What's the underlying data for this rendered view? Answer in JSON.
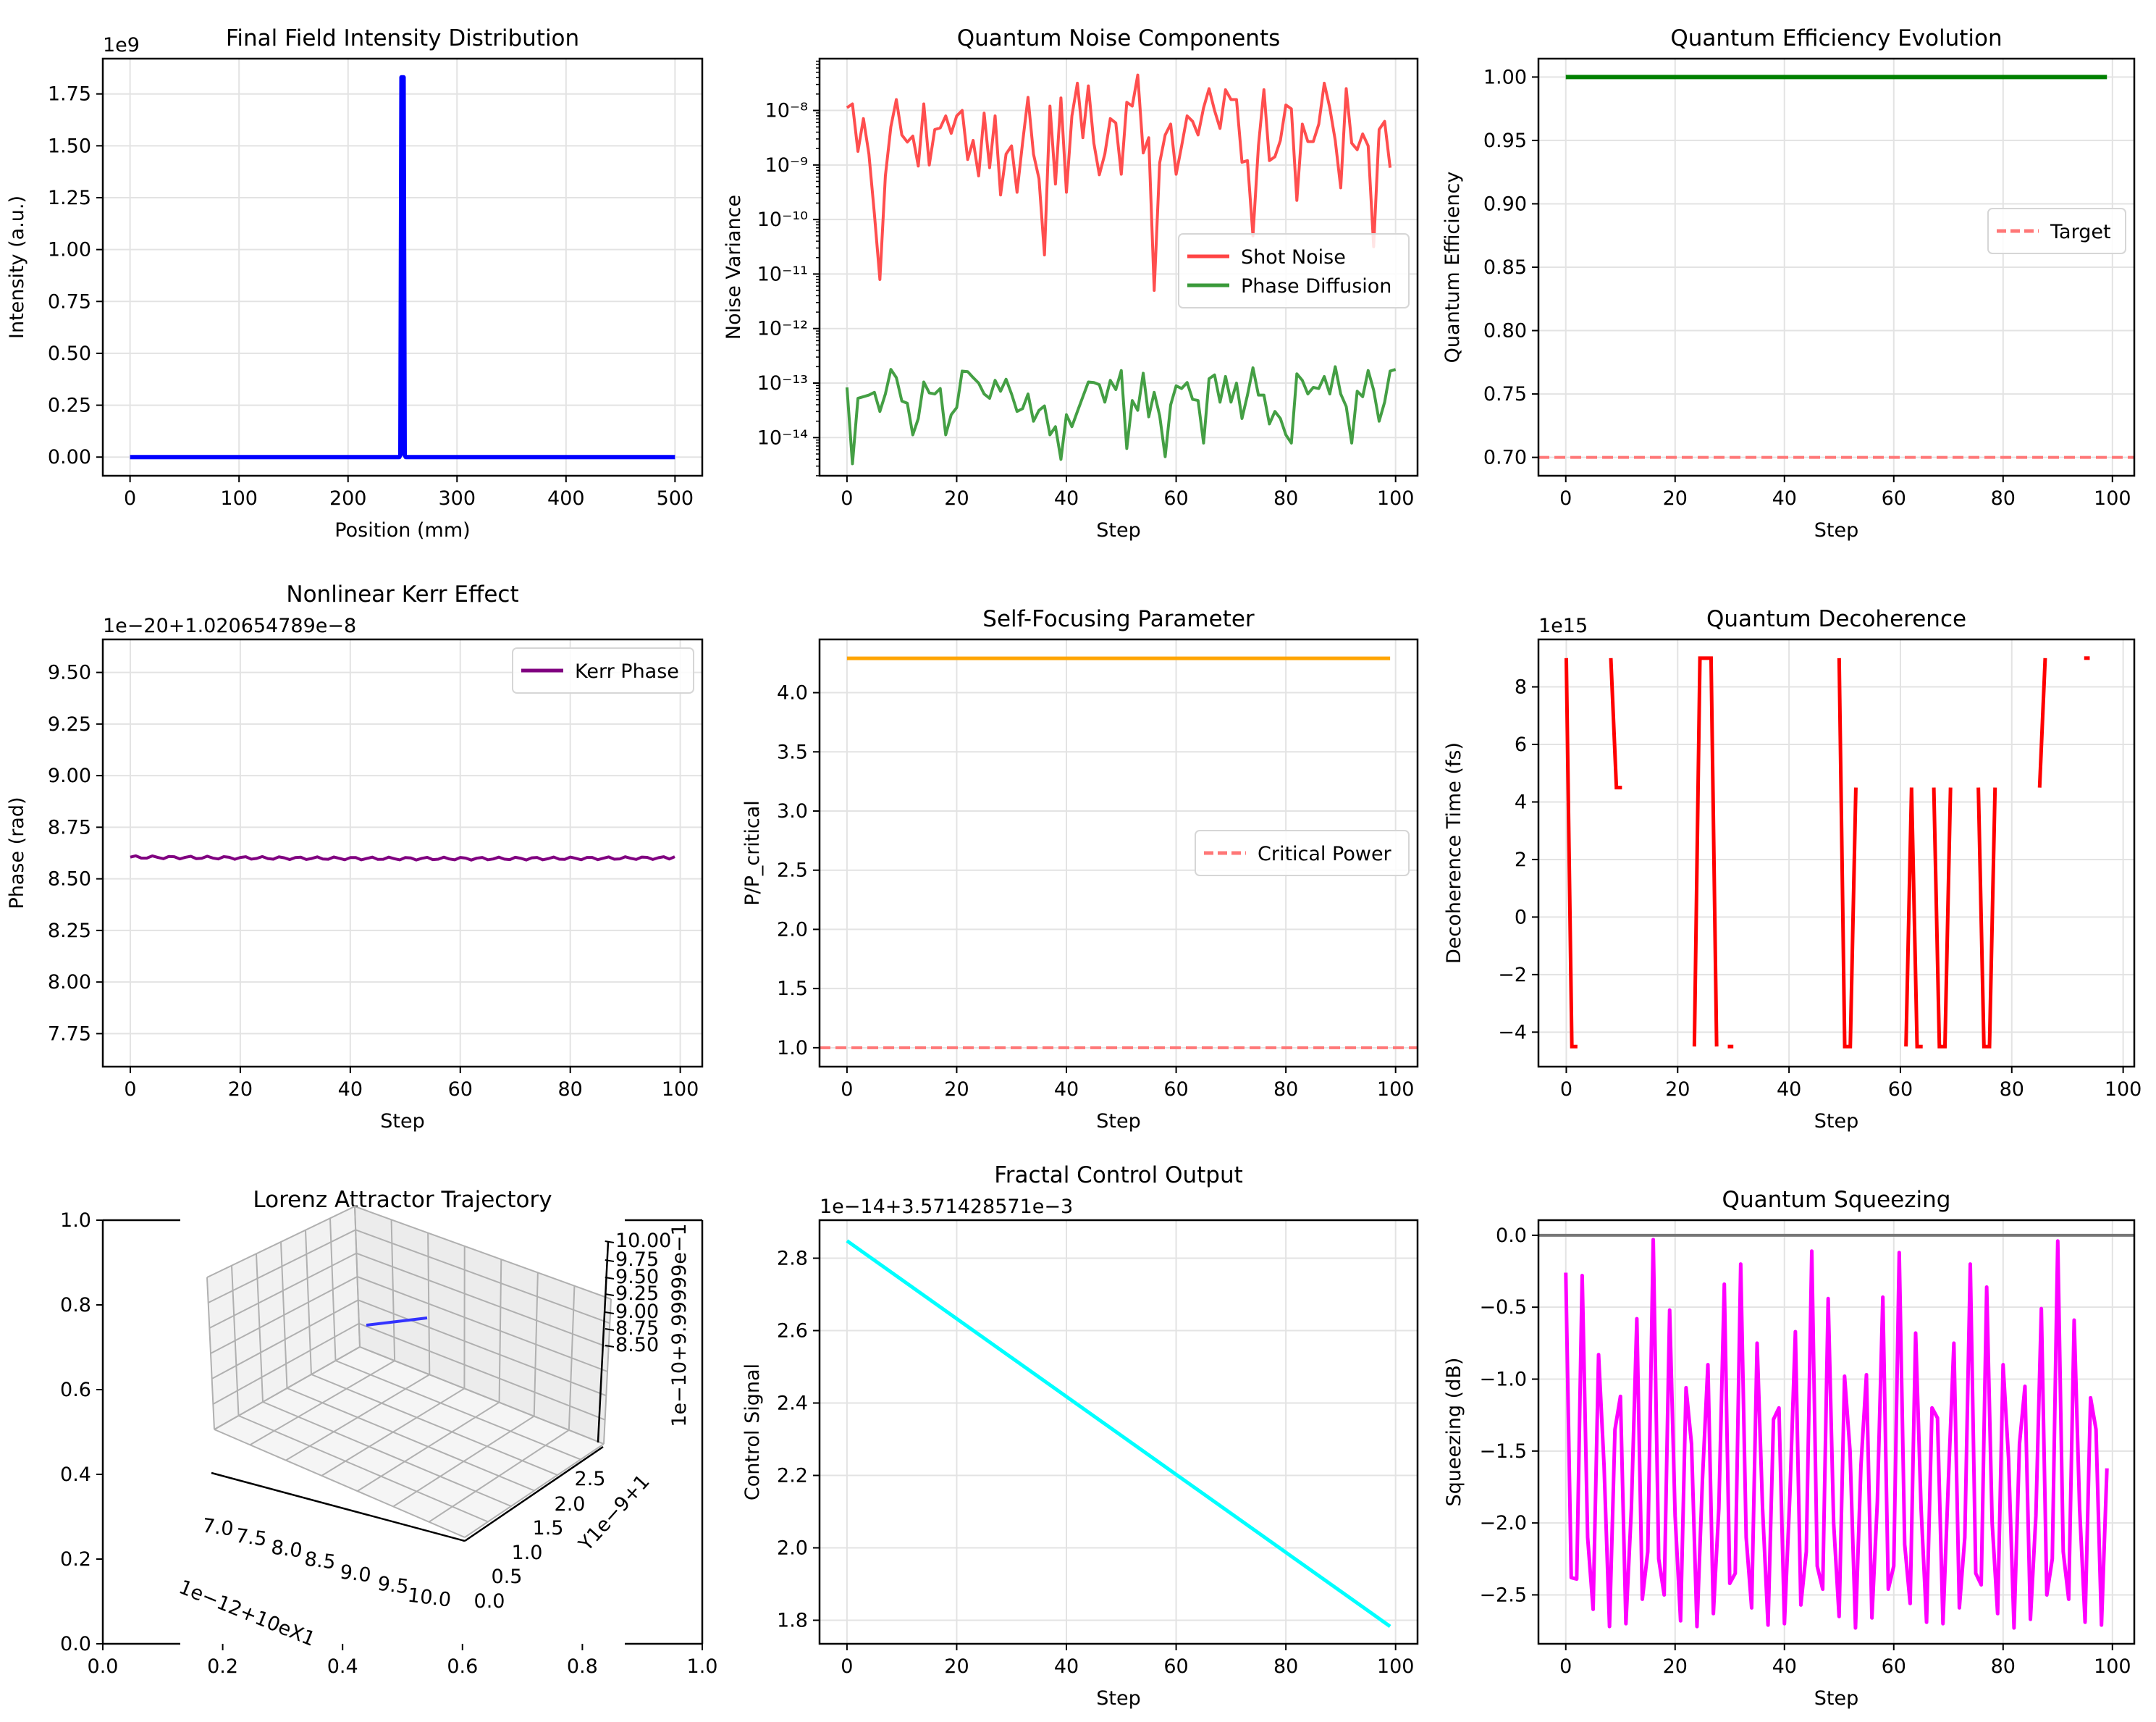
{
  "chart_data": [
    {
      "id": "intensity",
      "type": "line",
      "title": "Final Field Intensity Distribution",
      "xlabel": "Position (mm)",
      "ylabel": "Intensity (a.u.)",
      "offset_text": "1e9",
      "xlim": [
        -25,
        525
      ],
      "ylim": [
        -0.09,
        1.92
      ],
      "xticks": [
        0,
        100,
        200,
        300,
        400,
        500
      ],
      "xtick_labels": [
        "0",
        "100",
        "200",
        "300",
        "400",
        "500"
      ],
      "yticks": [
        0,
        0.25,
        0.5,
        0.75,
        1.0,
        1.25,
        1.5,
        1.75
      ],
      "ytick_labels": [
        "0.00",
        "0.25",
        "0.50",
        "0.75",
        "1.00",
        "1.25",
        "1.50",
        "1.75"
      ],
      "grid": true,
      "series": [
        {
          "name": "Intensity",
          "color": "#0000ff",
          "width": 6,
          "x": [
            0,
            247,
            248,
            249,
            250,
            251,
            252,
            253,
            500
          ],
          "y": [
            0,
            0,
            0.01,
            1.83,
            1.83,
            1.83,
            0.01,
            0,
            0
          ]
        }
      ]
    },
    {
      "id": "noise",
      "type": "line",
      "yscale": "log",
      "title": "Quantum Noise Components",
      "xlabel": "Step",
      "ylabel": "Noise Variance",
      "xlim": [
        -5,
        104
      ],
      "ylim_log10": [
        -14.7,
        -7.05
      ],
      "xticks": [
        0,
        20,
        40,
        60,
        80,
        100
      ],
      "xtick_labels": [
        "0",
        "20",
        "40",
        "60",
        "80",
        "100"
      ],
      "yticks_log10": [
        -14,
        -13,
        -12,
        -11,
        -10,
        -9,
        -8
      ],
      "ytick_labels": [
        "10⁻¹⁴",
        "10⁻¹³",
        "10⁻¹²",
        "10⁻¹¹",
        "10⁻¹⁰",
        "10⁻⁹",
        "10⁻⁸"
      ],
      "grid": true,
      "legend": {
        "position": "center-right",
        "entries": [
          "Shot Noise",
          "Phase Diffusion"
        ]
      },
      "series": [
        {
          "name": "Shot Noise",
          "color": "#ff4444",
          "width": 4,
          "log10_y": [
            -7.95,
            -7.88,
            -8.75,
            -8.15,
            -8.8,
            -9.9,
            -11.1,
            -9.2,
            -8.3,
            -7.8,
            -8.45,
            -8.58,
            -8.47,
            -9.02,
            -7.88,
            -9.0,
            -8.35,
            -8.32,
            -8.1,
            -8.42,
            -8.1,
            -8.0,
            -8.9,
            -8.55,
            -9.2,
            -8.05,
            -9.05,
            -8.1,
            -9.55,
            -8.8,
            -8.65,
            -9.5,
            -8.6,
            -7.76,
            -8.8,
            -9.25,
            -10.65,
            -7.92,
            -9.35,
            -7.77,
            -9.5,
            -8.1,
            -7.5,
            -8.5,
            -7.55,
            -8.6,
            -9.18,
            -8.8,
            -8.15,
            -8.23,
            -9.17,
            -7.85,
            -7.92,
            -7.35,
            -8.78,
            -8.5,
            -11.3,
            -8.96,
            -8.45,
            -8.25,
            -9.17,
            -8.65,
            -8.1,
            -8.2,
            -8.45,
            -7.95,
            -7.6,
            -8.0,
            -8.33,
            -7.62,
            -7.8,
            -7.8,
            -8.95,
            -8.92,
            -10.3,
            -8.65,
            -7.62,
            -8.92,
            -8.85,
            -8.55,
            -7.9,
            -7.97,
            -9.65,
            -8.25,
            -8.57,
            -8.57,
            -8.25,
            -7.5,
            -7.95,
            -8.55,
            -9.42,
            -7.6,
            -8.6,
            -8.72,
            -8.43,
            -8.65,
            -10.5,
            -8.35,
            -8.2,
            -9.05
          ]
        },
        {
          "name": "Phase Diffusion",
          "color": "#3a9a3a",
          "width": 4,
          "log10_y": [
            -13.08,
            -14.48,
            -13.28,
            -13.25,
            -13.22,
            -13.17,
            -13.52,
            -13.2,
            -12.75,
            -12.9,
            -13.33,
            -13.37,
            -13.95,
            -13.65,
            -12.98,
            -13.18,
            -13.2,
            -13.1,
            -13.95,
            -13.58,
            -13.45,
            -12.78,
            -12.79,
            -12.9,
            -13.0,
            -13.2,
            -13.28,
            -12.95,
            -13.15,
            -12.93,
            -13.2,
            -13.52,
            -13.47,
            -13.2,
            -13.7,
            -13.5,
            -13.42,
            -13.95,
            -13.8,
            -14.4,
            -13.58,
            -13.8,
            -13.52,
            -13.25,
            -12.98,
            -12.99,
            -13.03,
            -13.35,
            -12.95,
            -13.12,
            -12.77,
            -14.2,
            -13.32,
            -13.5,
            -12.82,
            -13.62,
            -13.17,
            -13.6,
            -14.35,
            -13.4,
            -13.05,
            -13.1,
            -12.99,
            -13.3,
            -13.32,
            -14.1,
            -12.92,
            -12.85,
            -13.35,
            -12.88,
            -13.35,
            -13.0,
            -13.65,
            -13.22,
            -12.72,
            -13.22,
            -13.22,
            -13.75,
            -13.52,
            -13.65,
            -13.95,
            -14.1,
            -12.83,
            -12.95,
            -13.2,
            -13.08,
            -13.1,
            -12.88,
            -13.2,
            -12.7,
            -13.2,
            -13.43,
            -14.1,
            -13.15,
            -13.25,
            -12.77,
            -13.13,
            -13.7,
            -13.35,
            -12.78,
            -12.75
          ]
        }
      ]
    },
    {
      "id": "efficiency",
      "type": "line",
      "title": "Quantum Efficiency Evolution",
      "xlabel": "Step",
      "ylabel": "Quantum Efficiency",
      "xlim": [
        -5,
        104
      ],
      "ylim": [
        0.6855,
        1.0145
      ],
      "xticks": [
        0,
        20,
        40,
        60,
        80,
        100
      ],
      "xtick_labels": [
        "0",
        "20",
        "40",
        "60",
        "80",
        "100"
      ],
      "yticks": [
        0.7,
        0.75,
        0.8,
        0.85,
        0.9,
        0.95,
        1.0
      ],
      "ytick_labels": [
        "0.70",
        "0.75",
        "0.80",
        "0.85",
        "0.90",
        "0.95",
        "1.00"
      ],
      "grid": true,
      "legend": {
        "position": "center-right",
        "entries": [
          "Target"
        ]
      },
      "series": [
        {
          "name": "Efficiency",
          "color": "#008000",
          "width": 6,
          "x": [
            0,
            99
          ],
          "y": [
            1.0,
            1.0
          ]
        }
      ],
      "hlines": [
        {
          "name": "Target",
          "y": 0.7,
          "color": "#ff7777",
          "dashed": true
        }
      ]
    },
    {
      "id": "kerr",
      "type": "line",
      "title": "Nonlinear Kerr Effect",
      "xlabel": "Step",
      "ylabel": "Phase (rad)",
      "offset_text": "1e−20+1.020654789e−8",
      "xlim": [
        -5,
        104
      ],
      "ylim": [
        7.59,
        9.66
      ],
      "xticks": [
        0,
        20,
        40,
        60,
        80,
        100
      ],
      "xtick_labels": [
        "0",
        "20",
        "40",
        "60",
        "80",
        "100"
      ],
      "yticks": [
        7.75,
        8.0,
        8.25,
        8.5,
        8.75,
        9.0,
        9.25,
        9.5
      ],
      "ytick_labels": [
        "7.75",
        "8.00",
        "8.25",
        "8.50",
        "8.75",
        "9.00",
        "9.25",
        "9.50"
      ],
      "grid": true,
      "legend": {
        "position": "upper-right",
        "entries": [
          "Kerr Phase"
        ]
      },
      "series": [
        {
          "name": "Kerr Phase",
          "color": "#800080",
          "width": 4,
          "y_base": 8.605,
          "y_amp": 0.007,
          "y_trend_end": 8.598,
          "y_end": 8.61,
          "n": 100
        }
      ]
    },
    {
      "id": "selffocus",
      "type": "line",
      "title": "Self-Focusing Parameter",
      "xlabel": "Step",
      "ylabel": "P/P_critical",
      "xlim": [
        -5,
        104
      ],
      "ylim": [
        0.84,
        4.45
      ],
      "xticks": [
        0,
        20,
        40,
        60,
        80,
        100
      ],
      "xtick_labels": [
        "0",
        "20",
        "40",
        "60",
        "80",
        "100"
      ],
      "yticks": [
        1.0,
        1.5,
        2.0,
        2.5,
        3.0,
        3.5,
        4.0
      ],
      "ytick_labels": [
        "1.0",
        "1.5",
        "2.0",
        "2.5",
        "3.0",
        "3.5",
        "4.0"
      ],
      "grid": true,
      "legend": {
        "position": "center-right",
        "entries": [
          "Critical Power"
        ]
      },
      "series": [
        {
          "name": "P/P_critical",
          "color": "#ffa500",
          "width": 5,
          "x": [
            0,
            99
          ],
          "y": [
            4.29,
            4.29
          ]
        }
      ],
      "hlines": [
        {
          "name": "Critical Power",
          "y": 1.0,
          "color": "#ff7777",
          "dashed": true
        }
      ]
    },
    {
      "id": "decoherence",
      "type": "line",
      "title": "Quantum Decoherence",
      "xlabel": "Step",
      "ylabel": "Decoherence Time (fs)",
      "offset_text": "1e15",
      "xlim": [
        -5,
        102
      ],
      "ylim": [
        -5.2,
        9.65
      ],
      "xticks": [
        0,
        20,
        40,
        60,
        80,
        100
      ],
      "xtick_labels": [
        "0",
        "20",
        "40",
        "60",
        "80",
        "100"
      ],
      "yticks": [
        -4,
        -2,
        0,
        2,
        4,
        6,
        8
      ],
      "ytick_labels": [
        "−4",
        "−2",
        "0",
        "2",
        "4",
        "6",
        "8"
      ],
      "grid": true,
      "series": [
        {
          "name": "Decoherence Time",
          "color": "#ff0000",
          "width": 5,
          "segments": [
            [
              [
                0,
                9.0
              ],
              [
                1,
                -4.5
              ],
              [
                2,
                -4.5
              ]
            ],
            [
              [
                8,
                9.0
              ],
              [
                9,
                4.5
              ],
              [
                10,
                4.5
              ]
            ],
            [
              [
                23,
                -4.5
              ],
              [
                24,
                9.0
              ],
              [
                25,
                9.0
              ],
              [
                26,
                9.0
              ],
              [
                27,
                -4.5
              ]
            ],
            [
              [
                29,
                -4.5
              ],
              [
                30,
                -4.5
              ]
            ],
            [
              [
                49,
                9.0
              ],
              [
                50,
                -4.5
              ],
              [
                51,
                -4.5
              ],
              [
                52,
                4.5
              ]
            ],
            [
              [
                61,
                -4.5
              ],
              [
                62,
                4.5
              ],
              [
                63,
                -4.5
              ],
              [
                64,
                -4.5
              ]
            ],
            [
              [
                66,
                4.5
              ],
              [
                67,
                -4.5
              ],
              [
                68,
                -4.5
              ],
              [
                69,
                4.5
              ]
            ],
            [
              [
                74,
                4.5
              ],
              [
                75,
                -4.5
              ],
              [
                76,
                -4.5
              ],
              [
                77,
                4.5
              ]
            ],
            [
              [
                85,
                4.5
              ],
              [
                86,
                9.0
              ]
            ],
            [
              [
                93,
                9.0
              ],
              [
                94,
                9.0
              ]
            ]
          ]
        }
      ]
    },
    {
      "id": "lorenz",
      "type": "line3d",
      "title": "Lorenz Attractor Trajectory",
      "outer_xticks": [
        "0.0",
        "0.2",
        "0.4",
        "0.6",
        "0.8",
        "1.0"
      ],
      "outer_yticks": [
        "0.0",
        "0.2",
        "0.4",
        "0.6",
        "0.8",
        "1.0"
      ],
      "x3_ticks": [
        "7.0",
        "7.5",
        "8.0",
        "8.5",
        "9.0",
        "9.5",
        "10.0"
      ],
      "x3_label": "1e−12+10eX1",
      "y3_ticks": [
        "0.0",
        "0.5",
        "1.0",
        "1.5",
        "2.0",
        "2.5"
      ],
      "y3_label": "Y1e−9+1",
      "z3_ticks": [
        "8.50",
        "8.75",
        "9.00",
        "9.25",
        "9.50",
        "9.75",
        "10.00"
      ],
      "z3_label": "1e−10+9.99999e−1",
      "series": [
        {
          "name": "Trajectory",
          "color": "#3333ff"
        }
      ]
    },
    {
      "id": "fractal",
      "type": "line",
      "title": "Fractal Control Output",
      "xlabel": "Step",
      "ylabel": "Control Signal",
      "offset_text": "1e−14+3.571428571e−3",
      "xlim": [
        -5,
        104
      ],
      "ylim": [
        1.735,
        2.905
      ],
      "xticks": [
        0,
        20,
        40,
        60,
        80,
        100
      ],
      "xtick_labels": [
        "0",
        "20",
        "40",
        "60",
        "80",
        "100"
      ],
      "yticks": [
        1.8,
        2.0,
        2.2,
        2.4,
        2.6,
        2.8
      ],
      "ytick_labels": [
        "1.8",
        "2.0",
        "2.2",
        "2.4",
        "2.6",
        "2.8"
      ],
      "grid": true,
      "series": [
        {
          "name": "Control Signal",
          "color": "#00ffff",
          "width": 5,
          "x": [
            0,
            99
          ],
          "y": [
            2.848,
            1.783
          ]
        }
      ]
    },
    {
      "id": "squeezing",
      "type": "line",
      "title": "Quantum Squeezing",
      "xlabel": "Step",
      "ylabel": "Squeezing (dB)",
      "xlim": [
        -5,
        104
      ],
      "ylim": [
        -2.84,
        0.105
      ],
      "xticks": [
        0,
        20,
        40,
        60,
        80,
        100
      ],
      "xtick_labels": [
        "0",
        "20",
        "40",
        "60",
        "80",
        "100"
      ],
      "yticks": [
        -2.5,
        -2.0,
        -1.5,
        -1.0,
        -0.5,
        0.0
      ],
      "ytick_labels": [
        "−2.5",
        "−2.0",
        "−1.5",
        "−1.0",
        "−0.5",
        "0.0"
      ],
      "grid": true,
      "series": [
        {
          "name": "Squeezing",
          "color": "#ff00ff",
          "width": 5,
          "y": [
            -0.26,
            -2.38,
            -2.39,
            -0.28,
            -2.1,
            -2.6,
            -0.83,
            -1.6,
            -2.72,
            -1.35,
            -1.12,
            -2.7,
            -1.9,
            -0.58,
            -2.53,
            -2.2,
            -0.03,
            -2.25,
            -2.5,
            -0.52,
            -1.95,
            -2.68,
            -1.06,
            -1.45,
            -2.72,
            -1.7,
            -0.9,
            -2.63,
            -1.9,
            -0.34,
            -2.42,
            -2.35,
            -0.2,
            -2.1,
            -2.59,
            -0.75,
            -1.9,
            -2.71,
            -1.28,
            -1.2,
            -2.7,
            -1.8,
            -0.67,
            -2.57,
            -2.2,
            -0.11,
            -2.3,
            -2.46,
            -0.44,
            -2.0,
            -2.65,
            -0.98,
            -1.5,
            -2.73,
            -1.6,
            -0.97,
            -2.66,
            -1.85,
            -0.43,
            -2.46,
            -2.3,
            -0.12,
            -2.15,
            -2.56,
            -0.68,
            -1.9,
            -2.69,
            -1.2,
            -1.27,
            -2.7,
            -1.7,
            -0.75,
            -2.59,
            -2.1,
            -0.2,
            -2.35,
            -2.43,
            -0.36,
            -2.0,
            -2.63,
            -0.9,
            -1.55,
            -2.73,
            -1.45,
            -1.05,
            -2.67,
            -1.95,
            -0.51,
            -2.5,
            -2.25,
            -0.04,
            -2.2,
            -2.53,
            -0.59,
            -1.9,
            -2.69,
            -1.13,
            -1.35,
            -2.71,
            -1.62
          ]
        }
      ],
      "hlines": [
        {
          "name": "Zero",
          "y": 0.0,
          "color": "#777777",
          "dashed": false
        }
      ]
    }
  ]
}
